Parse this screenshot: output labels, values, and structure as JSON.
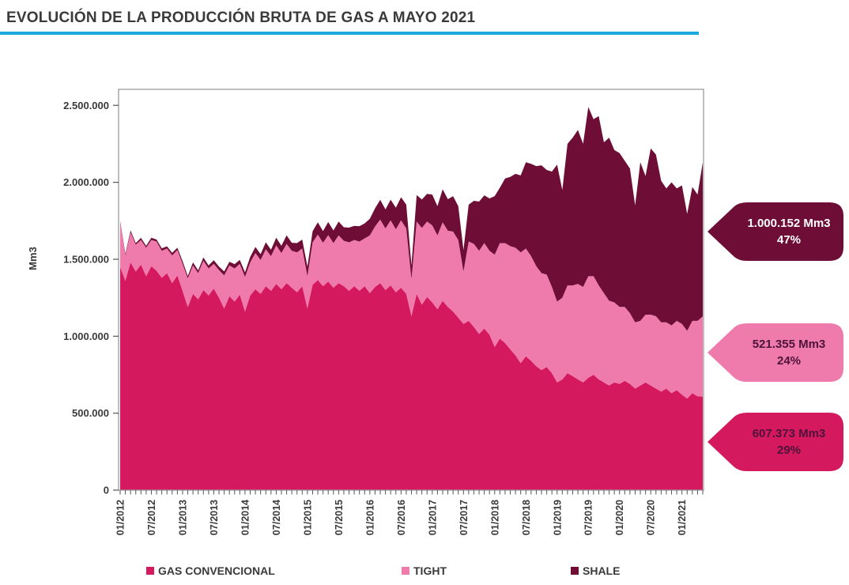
{
  "title": {
    "text": "EVOLUCIÓN DE LA PRODUCCIÓN BRUTA DE GAS A MAYO 2021",
    "underline_color": "#1BA8E1"
  },
  "chart_data": {
    "type": "area",
    "stacked": true,
    "ylabel": "Mm3",
    "ylim": [
      0,
      2500000
    ],
    "grid": false,
    "legend_position": "bottom",
    "ytick_values": [
      0,
      500000,
      1000000,
      1500000,
      2000000,
      2500000
    ],
    "ytick_labels": [
      "0",
      "500.000",
      "1.000.000",
      "1.500.000",
      "2.000.000",
      "2.500.000"
    ],
    "x_monthly_from": "01/2012",
    "x_monthly_to": "05/2021",
    "xtick_label_every_months": 6,
    "xtick_labels": [
      "01/2012",
      "07/2012",
      "01/2013",
      "07/2013",
      "01/2014",
      "07/2014",
      "01/2015",
      "07/2015",
      "01/2016",
      "07/2016",
      "01/2017",
      "07/2017",
      "01/2018",
      "07/2018",
      "01/2019",
      "07/2019",
      "01/2020",
      "07/2020",
      "01/2021"
    ],
    "series": [
      {
        "name": "GAS CONVENCIONAL",
        "color": "#D5195F",
        "values": [
          1450000,
          1360000,
          1480000,
          1420000,
          1465000,
          1390000,
          1455000,
          1425000,
          1380000,
          1410000,
          1345000,
          1395000,
          1295000,
          1190000,
          1275000,
          1240000,
          1300000,
          1265000,
          1310000,
          1250000,
          1180000,
          1260000,
          1225000,
          1270000,
          1160000,
          1265000,
          1305000,
          1275000,
          1325000,
          1295000,
          1340000,
          1305000,
          1345000,
          1315000,
          1285000,
          1325000,
          1180000,
          1335000,
          1365000,
          1325000,
          1355000,
          1315000,
          1345000,
          1325000,
          1295000,
          1325000,
          1295000,
          1325000,
          1280000,
          1320000,
          1345000,
          1300000,
          1330000,
          1285000,
          1315000,
          1275000,
          1130000,
          1275000,
          1205000,
          1255000,
          1220000,
          1175000,
          1230000,
          1190000,
          1160000,
          1120000,
          1080000,
          1100000,
          1060000,
          1015000,
          1050000,
          1010000,
          930000,
          985000,
          955000,
          915000,
          875000,
          825000,
          870000,
          840000,
          805000,
          780000,
          800000,
          760000,
          700000,
          720000,
          760000,
          740000,
          720000,
          700000,
          730000,
          750000,
          720000,
          700000,
          680000,
          700000,
          690000,
          710000,
          690000,
          660000,
          680000,
          700000,
          680000,
          660000,
          640000,
          660000,
          630000,
          650000,
          620000,
          595000,
          630000,
          610000,
          607373
        ]
      },
      {
        "name": "TIGHT",
        "color": "#EF7BAC",
        "values": [
          290000,
          165000,
          195000,
          175000,
          160000,
          185000,
          170000,
          190000,
          175000,
          160000,
          180000,
          165000,
          175000,
          185000,
          185000,
          170000,
          190000,
          175000,
          160000,
          180000,
          215000,
          200000,
          215000,
          200000,
          225000,
          215000,
          235000,
          220000,
          240000,
          225000,
          250000,
          235000,
          255000,
          240000,
          260000,
          245000,
          210000,
          275000,
          295000,
          282000,
          302000,
          290000,
          310000,
          295000,
          315000,
          300000,
          320000,
          310000,
          375000,
          393000,
          413000,
          400000,
          423000,
          410000,
          438000,
          425000,
          240000,
          470000,
          498000,
          490000,
          500000,
          480000,
          510000,
          495000,
          520000,
          505000,
          340000,
          515000,
          540000,
          540000,
          555000,
          545000,
          600000,
          620000,
          650000,
          670000,
          700000,
          720000,
          700000,
          680000,
          650000,
          630000,
          600000,
          560000,
          525000,
          530000,
          570000,
          590000,
          620000,
          620000,
          660000,
          640000,
          610000,
          580000,
          550000,
          520000,
          500000,
          480000,
          460000,
          430000,
          420000,
          440000,
          460000,
          470000,
          450000,
          430000,
          440000,
          450000,
          460000,
          440000,
          470000,
          490000,
          521355
        ]
      },
      {
        "name": "SHALE",
        "color": "#6E0E37",
        "values": [
          8000,
          10000,
          12000,
          10000,
          14000,
          12000,
          15000,
          13000,
          16000,
          14000,
          17000,
          15000,
          18000,
          16000,
          20000,
          18000,
          22000,
          20000,
          24000,
          22000,
          26000,
          24000,
          28000,
          26000,
          30000,
          35000,
          40000,
          38000,
          45000,
          42000,
          50000,
          48000,
          55000,
          52000,
          60000,
          58000,
          62000,
          72000,
          80000,
          76000,
          85000,
          82000,
          90000,
          88000,
          96000,
          92000,
          100000,
          98000,
          108000,
          118000,
          128000,
          124000,
          134000,
          140000,
          150000,
          155000,
          90000,
          172000,
          185000,
          180000,
          200000,
          190000,
          215000,
          205000,
          230000,
          220000,
          140000,
          240000,
          280000,
          320000,
          310000,
          340000,
          380000,
          360000,
          420000,
          450000,
          480000,
          500000,
          560000,
          600000,
          650000,
          700000,
          680000,
          750000,
          890000,
          700000,
          920000,
          960000,
          1000000,
          930000,
          1100000,
          1020000,
          1100000,
          980000,
          1060000,
          990000,
          1000000,
          950000,
          940000,
          760000,
          1030000,
          900000,
          1080000,
          1050000,
          920000,
          870000,
          930000,
          860000,
          900000,
          760000,
          870000,
          820000,
          1000152
        ]
      }
    ]
  },
  "callouts": [
    {
      "series": "SHALE",
      "value": "1.000.152 Mm3",
      "percent": "47%",
      "color": "#6E0E37",
      "text_color": "#FFFFFF"
    },
    {
      "series": "TIGHT",
      "value": "521.355 Mm3",
      "percent": "24%",
      "color": "#EF7BAC",
      "text_color": "#4D1339"
    },
    {
      "series": "GAS CONVENCIONAL",
      "value": "607.373 Mm3",
      "percent": "29%",
      "color": "#D5195F",
      "text_color": "#4D1339"
    }
  ],
  "legend": {
    "items": [
      {
        "label": "GAS CONVENCIONAL",
        "color": "#D5195F"
      },
      {
        "label": "TIGHT",
        "color": "#EF7BAC"
      },
      {
        "label": "SHALE",
        "color": "#6E0E37"
      }
    ]
  }
}
